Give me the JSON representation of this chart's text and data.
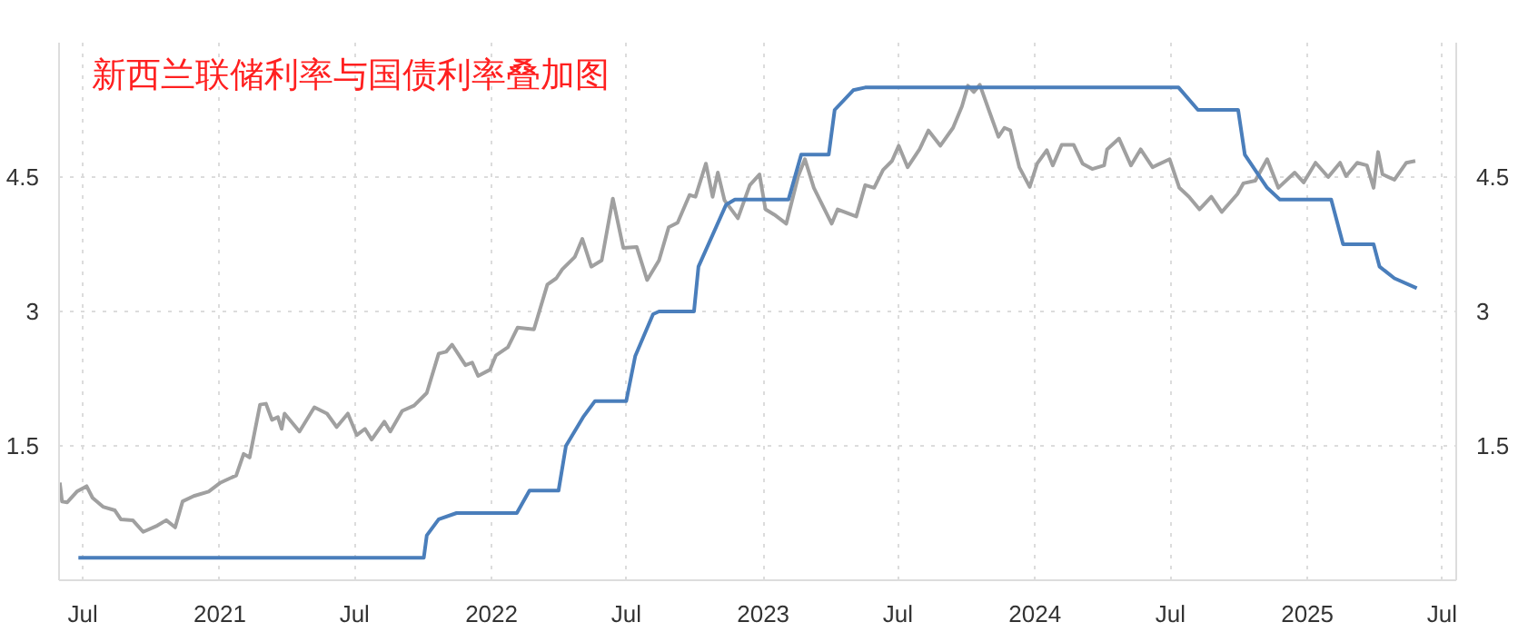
{
  "chart_data": {
    "type": "line",
    "title": "新西兰联储利率与国债利率叠加图",
    "xlim": [
      "2020-05-30",
      "2025-07-20"
    ],
    "xticks": [
      {
        "value": "2020-07-01",
        "label": "Jul"
      },
      {
        "value": "2021-01-01",
        "label": "2021"
      },
      {
        "value": "2021-07-01",
        "label": "Jul"
      },
      {
        "value": "2022-01-01",
        "label": "2022"
      },
      {
        "value": "2022-07-01",
        "label": "Jul"
      },
      {
        "value": "2023-01-01",
        "label": "2023"
      },
      {
        "value": "2023-07-01",
        "label": "Jul"
      },
      {
        "value": "2024-01-01",
        "label": "2024"
      },
      {
        "value": "2024-07-01",
        "label": "Jul"
      },
      {
        "value": "2025-01-01",
        "label": "2025"
      },
      {
        "value": "2025-07-01",
        "label": "Jul"
      }
    ],
    "ylim": [
      0,
      6
    ],
    "yticks": [
      1.5,
      3,
      4.5
    ],
    "y2lim": [
      0,
      6
    ],
    "y2ticks": [
      1.5,
      3,
      4.5
    ],
    "grid": true,
    "marker": "none",
    "line_style": "solid",
    "series": [
      {
        "color": "#a0a0a0",
        "x": [
          "2020-05-31",
          "2020-06-03",
          "2020-06-10",
          "2020-06-23",
          "2020-07-06",
          "2020-07-14",
          "2020-07-28",
          "2020-08-13",
          "2020-08-21",
          "2020-09-06",
          "2020-09-20",
          "2020-10-09",
          "2020-10-21",
          "2020-11-02",
          "2020-11-12",
          "2020-11-27",
          "2020-12-17",
          "2021-01-02",
          "2021-01-23",
          "2021-02-02",
          "2021-02-10",
          "2021-02-24",
          "2021-03-04",
          "2021-03-12",
          "2021-03-20",
          "2021-03-25",
          "2021-03-29",
          "2021-04-18",
          "2021-05-08",
          "2021-05-25",
          "2021-06-07",
          "2021-06-22",
          "2021-07-04",
          "2021-07-15",
          "2021-07-24",
          "2021-08-10",
          "2021-08-18",
          "2021-09-03",
          "2021-09-19",
          "2021-10-06",
          "2021-10-22",
          "2021-11-01",
          "2021-11-09",
          "2021-11-27",
          "2021-12-06",
          "2021-12-14",
          "2021-12-30",
          "2022-01-07",
          "2022-01-23",
          "2022-02-05",
          "2022-02-27",
          "2022-03-17",
          "2022-03-29",
          "2022-04-06",
          "2022-04-23",
          "2022-05-03",
          "2022-05-15",
          "2022-05-29",
          "2022-06-13",
          "2022-06-27",
          "2022-07-15",
          "2022-07-29",
          "2022-08-14",
          "2022-08-27",
          "2022-09-08",
          "2022-09-24",
          "2022-10-02",
          "2022-10-16",
          "2022-10-25",
          "2022-11-01",
          "2022-11-10",
          "2022-11-28",
          "2022-12-14",
          "2022-12-27",
          "2023-01-04",
          "2023-01-16",
          "2023-02-01",
          "2023-02-17",
          "2023-02-26",
          "2023-03-10",
          "2023-03-22",
          "2023-04-03",
          "2023-04-11",
          "2023-05-06",
          "2023-05-18",
          "2023-05-30",
          "2023-06-11",
          "2023-06-23",
          "2023-07-02",
          "2023-07-14",
          "2023-07-30",
          "2023-08-11",
          "2023-08-27",
          "2023-09-13",
          "2023-09-25",
          "2023-10-03",
          "2023-10-11",
          "2023-10-19",
          "2023-10-31",
          "2023-11-13",
          "2023-11-21",
          "2023-11-29",
          "2023-12-11",
          "2023-12-25",
          "2024-01-04",
          "2024-01-17",
          "2024-01-25",
          "2024-02-06",
          "2024-02-22",
          "2024-03-05",
          "2024-03-18",
          "2024-04-03",
          "2024-04-07",
          "2024-04-23",
          "2024-05-09",
          "2024-05-22",
          "2024-06-07",
          "2024-06-30",
          "2024-07-13",
          "2024-07-26",
          "2024-08-09",
          "2024-08-25",
          "2024-09-08",
          "2024-09-29",
          "2024-10-07",
          "2024-10-23",
          "2024-11-08",
          "2024-11-23",
          "2024-12-15",
          "2024-12-27",
          "2025-01-12",
          "2025-01-29",
          "2025-02-14",
          "2025-02-22",
          "2025-03-09",
          "2025-03-22",
          "2025-03-31",
          "2025-04-06",
          "2025-04-12",
          "2025-04-28",
          "2025-05-14",
          "2025-05-26"
        ],
        "values": [
          1.09,
          0.88,
          0.87,
          0.99,
          1.05,
          0.92,
          0.82,
          0.78,
          0.68,
          0.67,
          0.54,
          0.61,
          0.67,
          0.59,
          0.88,
          0.94,
          0.99,
          1.09,
          1.17,
          1.41,
          1.37,
          1.96,
          1.97,
          1.79,
          1.82,
          1.69,
          1.86,
          1.66,
          1.93,
          1.86,
          1.71,
          1.86,
          1.62,
          1.69,
          1.57,
          1.77,
          1.66,
          1.89,
          1.95,
          2.09,
          2.53,
          2.55,
          2.63,
          2.4,
          2.43,
          2.28,
          2.35,
          2.51,
          2.6,
          2.82,
          2.8,
          3.3,
          3.37,
          3.47,
          3.61,
          3.81,
          3.5,
          3.57,
          4.26,
          3.71,
          3.72,
          3.35,
          3.57,
          3.94,
          3.99,
          4.3,
          4.28,
          4.65,
          4.28,
          4.55,
          4.24,
          4.04,
          4.41,
          4.53,
          4.14,
          4.08,
          3.98,
          4.51,
          4.7,
          4.38,
          4.18,
          3.98,
          4.14,
          4.06,
          4.41,
          4.38,
          4.58,
          4.68,
          4.85,
          4.61,
          4.81,
          5.02,
          4.85,
          5.05,
          5.29,
          5.52,
          5.45,
          5.53,
          5.25,
          4.95,
          5.05,
          5.02,
          4.61,
          4.39,
          4.65,
          4.8,
          4.63,
          4.86,
          4.86,
          4.65,
          4.59,
          4.63,
          4.81,
          4.93,
          4.63,
          4.81,
          4.61,
          4.7,
          4.38,
          4.28,
          4.14,
          4.28,
          4.11,
          4.31,
          4.43,
          4.46,
          4.7,
          4.38,
          4.55,
          4.44,
          4.66,
          4.5,
          4.66,
          4.51,
          4.66,
          4.63,
          4.38,
          4.78,
          4.53,
          4.47,
          4.66,
          4.68
        ]
      },
      {
        "color": "#4a7ebb",
        "x": [
          "2020-06-25",
          "2021-10-02",
          "2021-10-06",
          "2021-10-22",
          "2021-11-15",
          "2022-02-04",
          "2022-02-21",
          "2022-04-01",
          "2022-04-11",
          "2022-05-04",
          "2022-05-20",
          "2022-07-01",
          "2022-07-13",
          "2022-08-06",
          "2022-08-14",
          "2022-09-30",
          "2022-10-06",
          "2022-11-12",
          "2022-11-24",
          "2023-02-04",
          "2023-02-21",
          "2023-03-30",
          "2023-04-07",
          "2023-05-02",
          "2023-05-18",
          "2024-07-12",
          "2024-08-07",
          "2024-09-30",
          "2024-10-09",
          "2024-11-08",
          "2024-11-25",
          "2025-02-02",
          "2025-02-18",
          "2025-03-31",
          "2025-04-08",
          "2025-04-28",
          "2025-05-28"
        ],
        "values": [
          0.25,
          0.25,
          0.5,
          0.68,
          0.75,
          0.75,
          1.0,
          1.0,
          1.5,
          1.82,
          2.0,
          2.0,
          2.5,
          2.97,
          3.0,
          3.0,
          3.5,
          4.19,
          4.25,
          4.25,
          4.75,
          4.75,
          5.25,
          5.47,
          5.5,
          5.5,
          5.25,
          5.25,
          4.75,
          4.38,
          4.25,
          4.25,
          3.75,
          3.75,
          3.5,
          3.37,
          3.26
        ]
      }
    ]
  }
}
